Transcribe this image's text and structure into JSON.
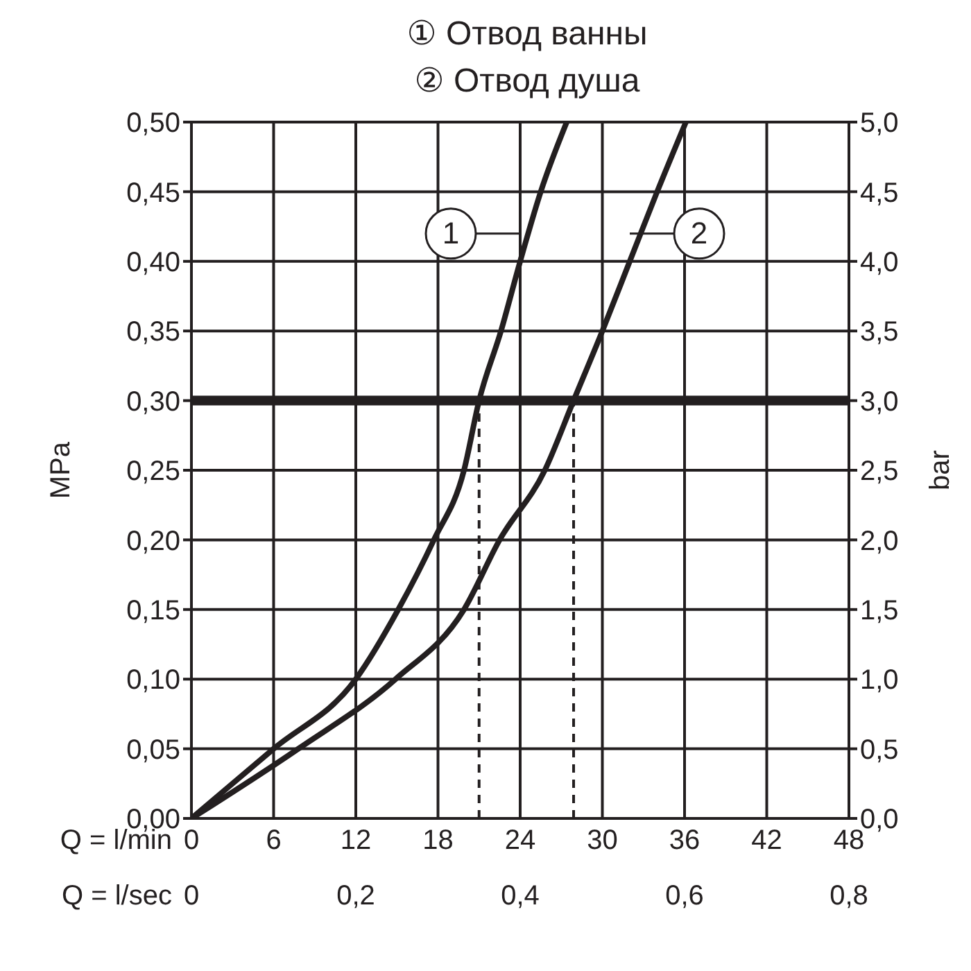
{
  "chart_data": {
    "type": "line",
    "annotations": [
      "① Отвод ванны",
      "② Отвод душа"
    ],
    "xlabel": "Q = l/min",
    "x2label": "Q = l/sec",
    "ylabel": "MPa",
    "y2label": "bar",
    "xlim": [
      0,
      48
    ],
    "xticks": [
      0,
      6,
      12,
      18,
      24,
      30,
      36,
      42,
      48
    ],
    "x2lim": [
      0,
      0.8
    ],
    "x2ticks": [
      0,
      {
        "value": 0.2,
        "label": "0,2"
      },
      {
        "value": 0.4,
        "label": "0,4"
      },
      {
        "value": 0.6,
        "label": "0,6"
      },
      {
        "value": 0.8,
        "label": "0,8"
      }
    ],
    "ylim": [
      0,
      0.5
    ],
    "yticks": [
      {
        "value": 0,
        "label": "0,00"
      },
      {
        "value": 0.05,
        "label": "0,05"
      },
      {
        "value": 0.1,
        "label": "0,10"
      },
      {
        "value": 0.15,
        "label": "0,15"
      },
      {
        "value": 0.2,
        "label": "0,20"
      },
      {
        "value": 0.25,
        "label": "0,25"
      },
      {
        "value": 0.3,
        "label": "0,30"
      },
      {
        "value": 0.35,
        "label": "0,35"
      },
      {
        "value": 0.4,
        "label": "0,40"
      },
      {
        "value": 0.45,
        "label": "0,45"
      },
      {
        "value": 0.5,
        "label": "0,50"
      }
    ],
    "y2lim": [
      0,
      5
    ],
    "y2ticks": [
      {
        "value": 0,
        "label": "0,0"
      },
      {
        "value": 0.5,
        "label": "0,5"
      },
      {
        "value": 1,
        "label": "1,0"
      },
      {
        "value": 1.5,
        "label": "1,5"
      },
      {
        "value": 2,
        "label": "2,0"
      },
      {
        "value": 2.5,
        "label": "2,5"
      },
      {
        "value": 3,
        "label": "3,0"
      },
      {
        "value": 3.5,
        "label": "3,5"
      },
      {
        "value": 4,
        "label": "4,0"
      },
      {
        "value": 4.5,
        "label": "4,5"
      },
      {
        "value": 5,
        "label": "5,0"
      }
    ],
    "series": [
      {
        "name": "1",
        "color": "#231f20",
        "x": [
          0,
          6,
          12,
          15.1,
          17.7,
          19.9,
          21,
          22.6,
          24,
          25.5,
          27.4
        ],
        "values": [
          0,
          0.05,
          0.1,
          0.15,
          0.2,
          0.25,
          0.3,
          0.35,
          0.4,
          0.45,
          0.5
        ]
      },
      {
        "name": "2",
        "color": "#231f20",
        "x": [
          0,
          7.8,
          14.9,
          19.9,
          22.5,
          25.8,
          27.9,
          30,
          32,
          34,
          36.1
        ],
        "values": [
          0,
          0.05,
          0.1,
          0.15,
          0.2,
          0.25,
          0.3,
          0.35,
          0.4,
          0.45,
          0.5
        ]
      }
    ],
    "ref_lines": [
      {
        "axis": "y",
        "value": 0.3,
        "color": "#231f20",
        "line_style": "solid"
      },
      {
        "axis": "x",
        "value": 21,
        "color": "#231f20",
        "line_style": "dashed"
      },
      {
        "axis": "x",
        "value": 27.9,
        "color": "#231f20",
        "line_style": "dashed"
      }
    ],
    "grid": true,
    "legend": "top",
    "marker": "none",
    "line_style": "solid"
  }
}
